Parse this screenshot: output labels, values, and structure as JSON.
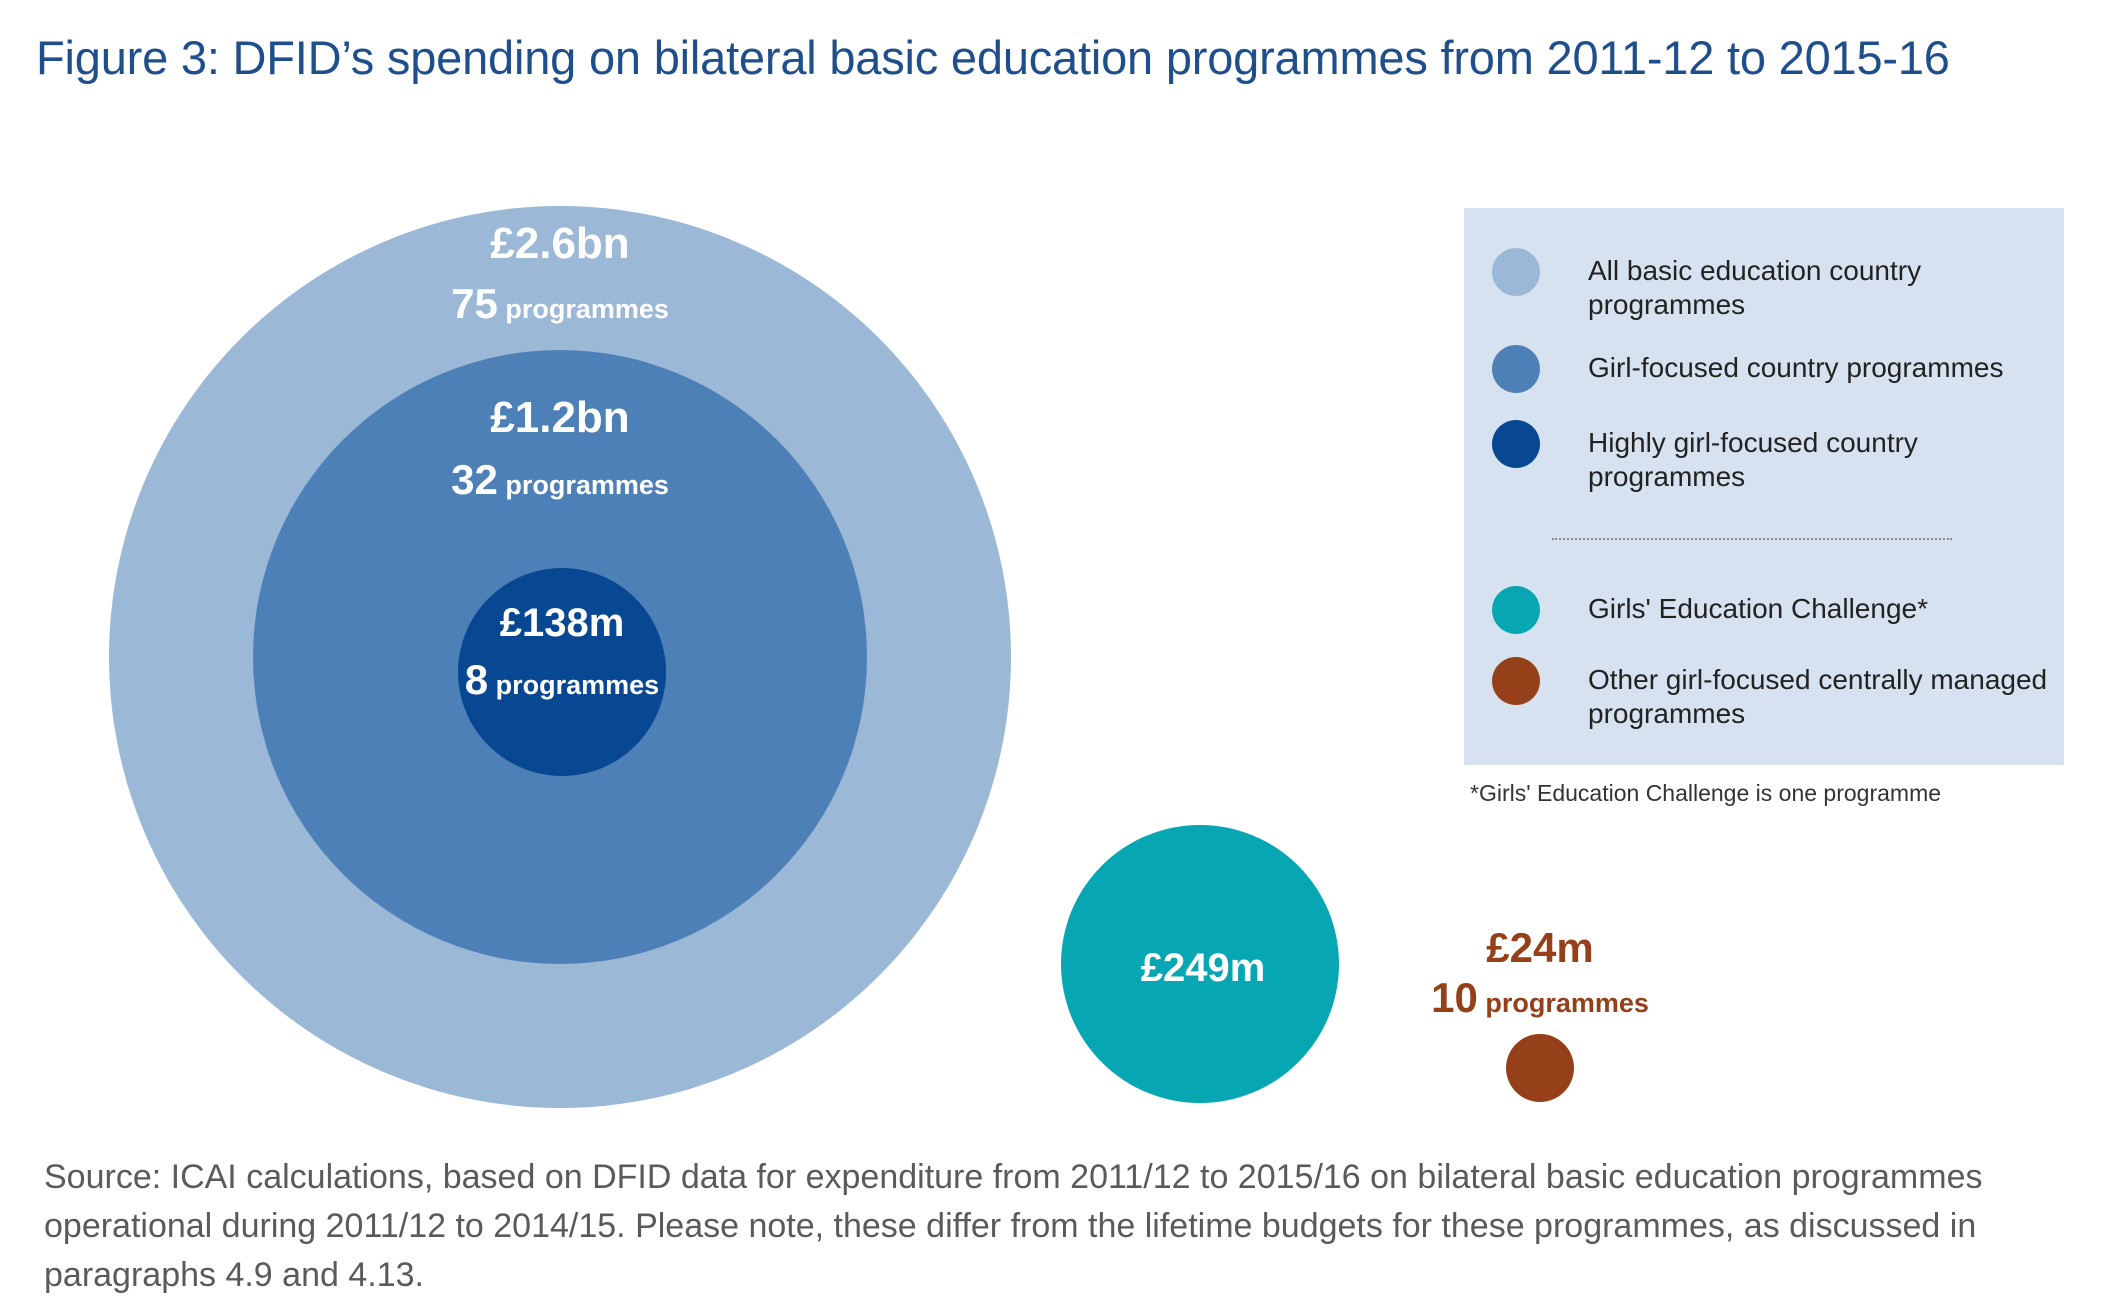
{
  "title": "Figure 3: DFID’s spending on bilateral basic education programmes from 2011-12 to 2015-16",
  "chart_data": {
    "type": "bubble",
    "title": "Figure 3: DFID’s spending on bilateral basic education programmes from 2011-12 to 2015-16",
    "value_unit": "£m",
    "series": [
      {
        "name": "All basic education country programmes",
        "value_label": "£2.6bn",
        "value": 2600,
        "count": 75,
        "count_suffix": "programmes",
        "color": "#9bb8d7"
      },
      {
        "name": "Girl-focused country programmes",
        "value_label": "£1.2bn",
        "value": 1200,
        "count": 32,
        "count_suffix": "programmes",
        "color": "#4e80b8"
      },
      {
        "name": "Highly girl-focused country programmes",
        "value_label": "£138m",
        "value": 138,
        "count": 8,
        "count_suffix": "programmes",
        "color": "#084892"
      },
      {
        "name": "Girls' Education Challenge*",
        "value_label": "£249m",
        "value": 249,
        "count": 1,
        "count_suffix": "",
        "color": "#07a6b3"
      },
      {
        "name": "Other girl-focused centrally managed programmes",
        "value_label": "£24m",
        "value": 24,
        "count": 10,
        "count_suffix": "programmes",
        "color": "#96401a"
      }
    ],
    "nesting": "All basic education country programmes contain Girl-focused country programmes, which contain Highly girl-focused country programmes"
  },
  "legend": {
    "items": [
      {
        "label": "All basic education country programmes",
        "color": "#9bb8d7"
      },
      {
        "label": "Girl-focused country programmes",
        "color": "#4e80b8"
      },
      {
        "label": "Highly girl-focused country programmes",
        "color": "#084892"
      },
      {
        "label": "Girls' Education Challenge*",
        "color": "#07a6b3"
      },
      {
        "label": "Other girl-focused centrally managed programmes",
        "color": "#96401a"
      }
    ],
    "background": "#d6e2ef"
  },
  "footnote": "*Girls' Education Challenge is one programme",
  "source": "Source: ICAI calculations, based on DFID data for expenditure from 2011/12 to 2015/16 on bilateral basic education programmes operational during 2011/12 to 2014/15. Please note, these differ from the lifetime budgets for these programmes, as discussed in paragraphs 4.9 and 4.13.",
  "colors": {
    "title": "#1f4e8c",
    "source_text": "#5a5a5a",
    "label_on_circle": "#ffffff"
  }
}
